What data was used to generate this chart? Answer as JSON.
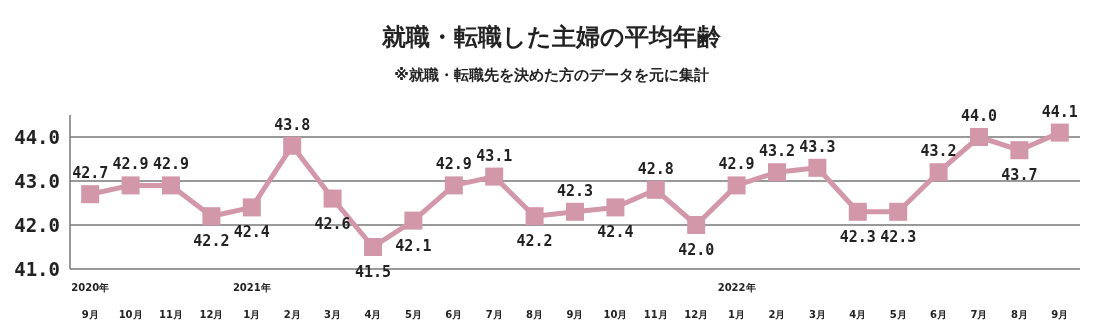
{
  "chart_data": {
    "type": "line",
    "title": "就職・転職した主婦の平均年齢",
    "subtitle": "※就職・転職先を決めた方のデータを元に集計",
    "categories": [
      "2020年\n9月",
      "10月",
      "11月",
      "12月",
      "2021年\n1月",
      "2月",
      "3月",
      "4月",
      "5月",
      "6月",
      "7月",
      "8月",
      "9月",
      "10月",
      "11月",
      "12月",
      "2022年\n1月",
      "2月",
      "3月",
      "4月",
      "5月",
      "6月",
      "7月",
      "8月",
      "9月"
    ],
    "values": [
      42.7,
      42.9,
      42.9,
      42.2,
      42.4,
      43.8,
      42.6,
      41.5,
      42.1,
      42.9,
      43.1,
      42.2,
      42.3,
      42.4,
      42.8,
      42.0,
      42.9,
      43.2,
      43.3,
      42.3,
      42.3,
      43.2,
      44.0,
      43.7,
      44.1
    ],
    "value_labels": [
      "42.7",
      "42.9",
      "42.9",
      "42.2",
      "42.4",
      "43.8",
      "42.6",
      "41.5",
      "42.1",
      "42.9",
      "43.1",
      "42.2",
      "42.3",
      "42.4",
      "42.8",
      "42.0",
      "42.9",
      "43.2",
      "43.3",
      "42.3",
      "42.3",
      "43.2",
      "44.0",
      "43.7",
      "44.1"
    ],
    "color": "#d397aa",
    "marker": "square",
    "grid": "y",
    "ylim": [
      41,
      44.5
    ],
    "yticks": [
      {
        "value": 41,
        "label": "41.0"
      },
      {
        "value": 42,
        "label": "42.0"
      },
      {
        "value": 43,
        "label": "43.0"
      },
      {
        "value": 44,
        "label": "44.0"
      }
    ]
  }
}
